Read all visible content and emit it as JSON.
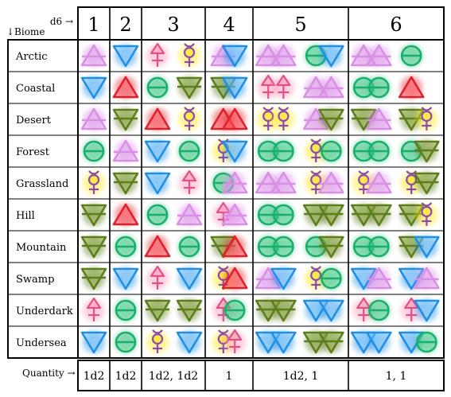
{
  "corner": {
    "d6_label": "d6 →",
    "biome_label": "↓Biome"
  },
  "columns": [
    "1",
    "2",
    "3",
    "4",
    "5",
    "6"
  ],
  "quantity_label": "Quantity →",
  "quantities": [
    "1d2",
    "1d2",
    "1d2, 1d2",
    "1",
    "1d2,     1",
    "1,        1"
  ],
  "colors": {
    "air": "#d98fe6",
    "water": "#1f8fe6",
    "fire": "#e0202a",
    "earth": "#5e7d1c",
    "salt": "#18b06a",
    "mercury": "#8a4bb0",
    "mercury_fill": "#ffe60a",
    "sulfur": "#e0508a",
    "sulfur_fill": "#ff9ab8"
  },
  "rows": [
    {
      "biome": "Arctic",
      "cells": [
        [
          "air"
        ],
        [
          "water"
        ],
        [
          "sulfur",
          "mercury"
        ],
        [
          "air",
          "water"
        ],
        [
          "air",
          "air",
          "salt",
          "water"
        ],
        [
          "air",
          "air",
          "salt"
        ]
      ]
    },
    {
      "biome": "Coastal",
      "cells": [
        [
          "water"
        ],
        [
          "fire"
        ],
        [
          "salt",
          "earth"
        ],
        [
          "earth",
          "water"
        ],
        [
          "sulfur",
          "sulfur",
          "air",
          "air"
        ],
        [
          "salt",
          "salt",
          "fire"
        ]
      ]
    },
    {
      "biome": "Desert",
      "cells": [
        [
          "air"
        ],
        [
          "earth"
        ],
        [
          "fire",
          "mercury"
        ],
        [
          "fire",
          "fire"
        ],
        [
          "mercury",
          "mercury",
          "air",
          "earth"
        ],
        [
          "earth",
          "air",
          "earth",
          "mercury"
        ]
      ]
    },
    {
      "biome": "Forest",
      "cells": [
        [
          "salt"
        ],
        [
          "air"
        ],
        [
          "water",
          "salt"
        ],
        [
          "mercury",
          "water"
        ],
        [
          "salt",
          "salt",
          "mercury",
          "salt"
        ],
        [
          "salt",
          "salt",
          "salt",
          "earth"
        ]
      ]
    },
    {
      "biome": "Grassland",
      "cells": [
        [
          "mercury"
        ],
        [
          "earth"
        ],
        [
          "water",
          "sulfur"
        ],
        [
          "salt",
          "air"
        ],
        [
          "air",
          "air",
          "mercury",
          "air"
        ],
        [
          "mercury",
          "air",
          "mercury",
          "earth"
        ]
      ]
    },
    {
      "biome": "Hill",
      "cells": [
        [
          "earth"
        ],
        [
          "fire"
        ],
        [
          "salt",
          "air"
        ],
        [
          "sulfur",
          "air"
        ],
        [
          "salt",
          "salt",
          "earth",
          "earth"
        ],
        [
          "earth",
          "earth",
          "earth",
          "mercury"
        ]
      ]
    },
    {
      "biome": "Mountain",
      "cells": [
        [
          "earth"
        ],
        [
          "salt"
        ],
        [
          "fire",
          "salt"
        ],
        [
          "earth",
          "fire"
        ],
        [
          "salt",
          "salt",
          "salt",
          "earth"
        ],
        [
          "salt",
          "salt",
          "earth",
          "water"
        ]
      ]
    },
    {
      "biome": "Swamp",
      "cells": [
        [
          "earth"
        ],
        [
          "water"
        ],
        [
          "sulfur",
          "water"
        ],
        [
          "mercury",
          "fire"
        ],
        [
          "air",
          "water",
          "mercury",
          "salt"
        ],
        [
          "water",
          "air",
          "water",
          "air"
        ]
      ]
    },
    {
      "biome": "Underdark",
      "cells": [
        [
          "sulfur"
        ],
        [
          "salt"
        ],
        [
          "earth",
          "earth"
        ],
        [
          "sulfur",
          "salt"
        ],
        [
          "earth",
          "earth",
          "water",
          "water"
        ],
        [
          "sulfur",
          "salt",
          "sulfur",
          "water"
        ]
      ]
    },
    {
      "biome": "Undersea",
      "cells": [
        [
          "water"
        ],
        [
          "salt"
        ],
        [
          "mercury",
          "water"
        ],
        [
          "mercury",
          "sulfur"
        ],
        [
          "water",
          "water",
          "earth",
          "earth"
        ],
        [
          "water",
          "water",
          "water",
          "salt"
        ]
      ]
    }
  ]
}
